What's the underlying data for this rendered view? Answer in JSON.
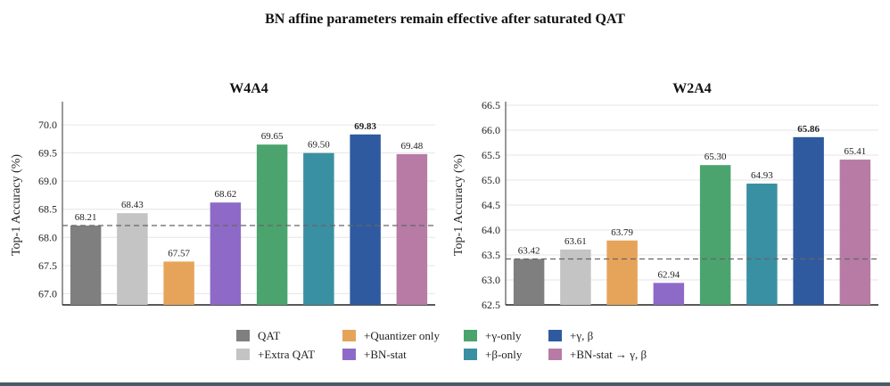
{
  "figure": {
    "title": "BN affine parameters remain effective after saturated QAT"
  },
  "chart_data": [
    {
      "type": "bar",
      "title": "W4A4",
      "xlabel": "",
      "ylabel": "Top-1 Accuracy (%)",
      "ylim": [
        66.8,
        70.35
      ],
      "yticks": [
        67.0,
        67.5,
        68.0,
        68.5,
        69.0,
        69.5,
        70.0
      ],
      "grid": true,
      "baseline": 68.21,
      "categories": [
        "QAT",
        "+Extra QAT",
        "+Quantizer only",
        "+BN-stat",
        "+γ-only",
        "+β-only",
        "+γ, β",
        "+BN-stat → γ, β"
      ],
      "values": [
        68.21,
        68.43,
        67.57,
        68.62,
        69.65,
        69.5,
        69.83,
        69.48
      ],
      "value_labels": [
        "68.21",
        "68.43",
        "67.57",
        "68.62",
        "69.65",
        "69.50",
        "69.83",
        "69.48"
      ],
      "highlight_index": 6
    },
    {
      "type": "bar",
      "title": "W2A4",
      "xlabel": "",
      "ylabel": "Top-1 Accuracy (%)",
      "ylim": [
        62.5,
        66.5
      ],
      "yticks": [
        62.5,
        63.0,
        63.5,
        64.0,
        64.5,
        65.0,
        65.5,
        66.0,
        66.5
      ],
      "grid": true,
      "baseline": 63.42,
      "categories": [
        "QAT",
        "+Extra QAT",
        "+Quantizer only",
        "+BN-stat",
        "+γ-only",
        "+β-only",
        "+γ, β",
        "+BN-stat → γ, β"
      ],
      "values": [
        63.42,
        63.61,
        63.79,
        62.94,
        65.3,
        64.93,
        65.86,
        65.41
      ],
      "value_labels": [
        "63.42",
        "63.61",
        "63.79",
        "62.94",
        "65.30",
        "64.93",
        "65.86",
        "65.41"
      ],
      "highlight_index": 6
    }
  ],
  "legend": {
    "placement": "bottom-center",
    "items": [
      {
        "label": "QAT",
        "color": "#7f7f7f"
      },
      {
        "label": "+Extra QAT",
        "color": "#c4c4c4"
      },
      {
        "label": "+Quantizer only",
        "color": "#e6a45a"
      },
      {
        "label": "+BN-stat",
        "color": "#8e6ac8"
      },
      {
        "label": "+γ-only",
        "color": "#4ba46e"
      },
      {
        "label": "+β-only",
        "color": "#3a90a3"
      },
      {
        "label": "+γ, β",
        "color": "#2f5aa0"
      },
      {
        "label": "+BN-stat → γ, β",
        "color": "#b77ba6"
      }
    ]
  }
}
